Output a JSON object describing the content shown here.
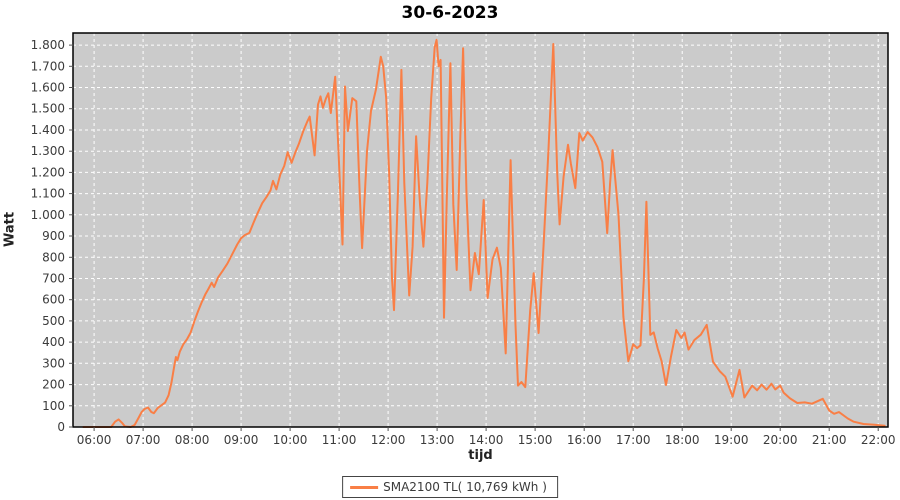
{
  "chart": {
    "title": "30-6-2023",
    "y_axis_title": "Watt",
    "x_axis_title": "tijd",
    "legend_label": "SMA2100 TL( 10,769 kWh )"
  },
  "colors": {
    "series": "#f97f46",
    "plot_background": "#cbcbcb",
    "gridline": "#ffffff",
    "plot_border": "#000000",
    "tick_text": "#3b3b3b",
    "page_background": "#ffffff"
  },
  "chart_data": {
    "type": "line",
    "title": "30-6-2023",
    "xlabel": "tijd",
    "ylabel": "Watt",
    "legend_position": "bottom-center",
    "grid": "on (white dashed, gray plot background)",
    "xlim": [
      5.57,
      22.2
    ],
    "ylim": [
      0,
      1857
    ],
    "x_ticks": {
      "values": [
        6,
        7,
        8,
        9,
        10,
        11,
        12,
        13,
        14,
        15,
        16,
        17,
        18,
        19,
        20,
        21,
        22
      ],
      "labels": [
        "06:00",
        "07:00",
        "08:00",
        "09:00",
        "10:00",
        "11:00",
        "12:00",
        "13:00",
        "14:00",
        "15:00",
        "16:00",
        "17:00",
        "18:00",
        "19:00",
        "20:00",
        "21:00",
        "22:00"
      ]
    },
    "y_ticks": {
      "values": [
        0,
        100,
        200,
        300,
        400,
        500,
        600,
        700,
        800,
        900,
        1000,
        1100,
        1200,
        1300,
        1400,
        1500,
        1600,
        1700,
        1800
      ],
      "labels": [
        "0",
        "100",
        "200",
        "300",
        "400",
        "500",
        "600",
        "700",
        "800",
        "900",
        "1.000",
        "1.100",
        "1.200",
        "1.300",
        "1.400",
        "1.500",
        "1.600",
        "1.700",
        "1.800"
      ]
    },
    "series": [
      {
        "name": "SMA2100 TL( 10,769 kWh )",
        "color": "#f97f46",
        "x_unit": "hour_of_day_decimal",
        "y_unit": "Watt",
        "points": [
          [
            5.78,
            0
          ],
          [
            6.1,
            0
          ],
          [
            6.35,
            0
          ],
          [
            6.43,
            25
          ],
          [
            6.5,
            36
          ],
          [
            6.57,
            20
          ],
          [
            6.63,
            3
          ],
          [
            6.75,
            0
          ],
          [
            6.83,
            10
          ],
          [
            6.9,
            40
          ],
          [
            6.97,
            70
          ],
          [
            7.03,
            85
          ],
          [
            7.1,
            92
          ],
          [
            7.17,
            70
          ],
          [
            7.22,
            65
          ],
          [
            7.3,
            90
          ],
          [
            7.38,
            103
          ],
          [
            7.45,
            115
          ],
          [
            7.52,
            150
          ],
          [
            7.58,
            210
          ],
          [
            7.63,
            280
          ],
          [
            7.67,
            330
          ],
          [
            7.7,
            315
          ],
          [
            7.75,
            355
          ],
          [
            7.82,
            390
          ],
          [
            7.9,
            415
          ],
          [
            7.97,
            445
          ],
          [
            8.05,
            500
          ],
          [
            8.12,
            545
          ],
          [
            8.2,
            590
          ],
          [
            8.27,
            625
          ],
          [
            8.33,
            650
          ],
          [
            8.4,
            680
          ],
          [
            8.45,
            660
          ],
          [
            8.53,
            705
          ],
          [
            8.62,
            735
          ],
          [
            8.72,
            770
          ],
          [
            8.82,
            815
          ],
          [
            8.92,
            860
          ],
          [
            9.0,
            890
          ],
          [
            9.08,
            905
          ],
          [
            9.17,
            915
          ],
          [
            9.25,
            960
          ],
          [
            9.33,
            1005
          ],
          [
            9.43,
            1055
          ],
          [
            9.52,
            1085
          ],
          [
            9.6,
            1115
          ],
          [
            9.65,
            1160
          ],
          [
            9.72,
            1120
          ],
          [
            9.8,
            1190
          ],
          [
            9.88,
            1230
          ],
          [
            9.95,
            1295
          ],
          [
            10.03,
            1245
          ],
          [
            10.1,
            1290
          ],
          [
            10.18,
            1335
          ],
          [
            10.27,
            1395
          ],
          [
            10.35,
            1440
          ],
          [
            10.4,
            1463
          ],
          [
            10.5,
            1280
          ],
          [
            10.57,
            1520
          ],
          [
            10.62,
            1558
          ],
          [
            10.67,
            1505
          ],
          [
            10.73,
            1548
          ],
          [
            10.78,
            1573
          ],
          [
            10.83,
            1480
          ],
          [
            10.92,
            1651
          ],
          [
            11.0,
            1235
          ],
          [
            11.07,
            860
          ],
          [
            11.12,
            1605
          ],
          [
            11.18,
            1395
          ],
          [
            11.27,
            1550
          ],
          [
            11.35,
            1535
          ],
          [
            11.42,
            1100
          ],
          [
            11.47,
            843
          ],
          [
            11.57,
            1300
          ],
          [
            11.65,
            1490
          ],
          [
            11.75,
            1590
          ],
          [
            11.85,
            1745
          ],
          [
            11.9,
            1700
          ],
          [
            11.96,
            1550
          ],
          [
            12.02,
            1200
          ],
          [
            12.08,
            700
          ],
          [
            12.12,
            551
          ],
          [
            12.2,
            1100
          ],
          [
            12.27,
            1683
          ],
          [
            12.33,
            1150
          ],
          [
            12.43,
            620
          ],
          [
            12.5,
            850
          ],
          [
            12.57,
            1370
          ],
          [
            12.65,
            1050
          ],
          [
            12.72,
            850
          ],
          [
            12.8,
            1150
          ],
          [
            12.88,
            1550
          ],
          [
            12.95,
            1790
          ],
          [
            12.99,
            1825
          ],
          [
            13.03,
            1700
          ],
          [
            13.07,
            1730
          ],
          [
            13.1,
            1250
          ],
          [
            13.14,
            515
          ],
          [
            13.2,
            1100
          ],
          [
            13.27,
            1714
          ],
          [
            13.33,
            1050
          ],
          [
            13.4,
            740
          ],
          [
            13.47,
            1350
          ],
          [
            13.53,
            1785
          ],
          [
            13.6,
            1100
          ],
          [
            13.68,
            645
          ],
          [
            13.77,
            820
          ],
          [
            13.85,
            720
          ],
          [
            13.95,
            1070
          ],
          [
            14.03,
            608
          ],
          [
            14.13,
            790
          ],
          [
            14.22,
            845
          ],
          [
            14.3,
            750
          ],
          [
            14.4,
            347
          ],
          [
            14.5,
            1258
          ],
          [
            14.6,
            480
          ],
          [
            14.65,
            195
          ],
          [
            14.72,
            212
          ],
          [
            14.8,
            188
          ],
          [
            14.9,
            550
          ],
          [
            14.97,
            725
          ],
          [
            15.07,
            443
          ],
          [
            15.17,
            850
          ],
          [
            15.27,
            1300
          ],
          [
            15.37,
            1805
          ],
          [
            15.45,
            1200
          ],
          [
            15.5,
            955
          ],
          [
            15.58,
            1180
          ],
          [
            15.67,
            1330
          ],
          [
            15.73,
            1240
          ],
          [
            15.82,
            1126
          ],
          [
            15.9,
            1385
          ],
          [
            15.97,
            1350
          ],
          [
            16.07,
            1390
          ],
          [
            16.17,
            1365
          ],
          [
            16.27,
            1320
          ],
          [
            16.37,
            1250
          ],
          [
            16.47,
            914
          ],
          [
            16.53,
            1150
          ],
          [
            16.58,
            1305
          ],
          [
            16.7,
            1000
          ],
          [
            16.8,
            519
          ],
          [
            16.9,
            310
          ],
          [
            17.0,
            390
          ],
          [
            17.08,
            372
          ],
          [
            17.15,
            385
          ],
          [
            17.22,
            700
          ],
          [
            17.27,
            1062
          ],
          [
            17.35,
            434
          ],
          [
            17.42,
            446
          ],
          [
            17.5,
            370
          ],
          [
            17.58,
            310
          ],
          [
            17.67,
            198
          ],
          [
            17.77,
            330
          ],
          [
            17.88,
            457
          ],
          [
            17.98,
            420
          ],
          [
            18.05,
            445
          ],
          [
            18.13,
            365
          ],
          [
            18.25,
            410
          ],
          [
            18.38,
            435
          ],
          [
            18.5,
            481
          ],
          [
            18.63,
            308
          ],
          [
            18.77,
            262
          ],
          [
            18.88,
            237
          ],
          [
            19.03,
            143
          ],
          [
            19.17,
            269
          ],
          [
            19.27,
            139
          ],
          [
            19.43,
            195
          ],
          [
            19.53,
            173
          ],
          [
            19.62,
            200
          ],
          [
            19.72,
            176
          ],
          [
            19.82,
            204
          ],
          [
            19.9,
            177
          ],
          [
            20.0,
            195
          ],
          [
            20.07,
            162
          ],
          [
            20.2,
            135
          ],
          [
            20.35,
            113
          ],
          [
            20.5,
            116
          ],
          [
            20.65,
            110
          ],
          [
            20.87,
            133
          ],
          [
            21.0,
            78
          ],
          [
            21.1,
            62
          ],
          [
            21.2,
            70
          ],
          [
            21.38,
            40
          ],
          [
            21.5,
            25
          ],
          [
            21.7,
            14
          ],
          [
            21.92,
            11
          ],
          [
            22.13,
            6
          ]
        ]
      }
    ]
  }
}
